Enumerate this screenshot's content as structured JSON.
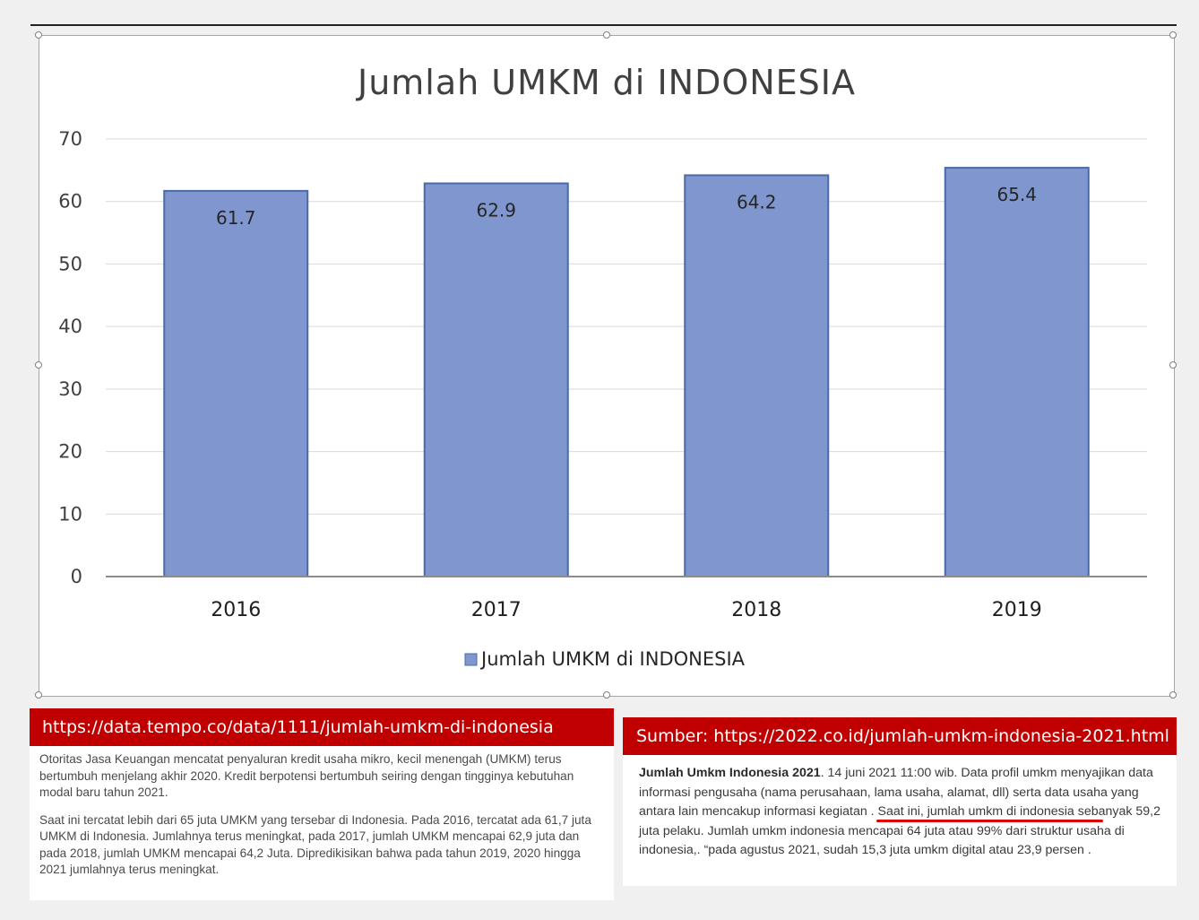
{
  "chart_data": {
    "type": "bar",
    "title": "Jumlah UMKM di INDONESIA",
    "categories": [
      "2016",
      "2017",
      "2018",
      "2019"
    ],
    "series": [
      {
        "name": "Jumlah UMKM di INDONESIA",
        "values": [
          61.7,
          62.9,
          64.2,
          65.4
        ]
      }
    ],
    "data_labels": [
      "61.7",
      "62.9",
      "64.2",
      "65.4"
    ],
    "ylim": [
      0,
      70
    ],
    "yticks": [
      0,
      10,
      20,
      30,
      40,
      50,
      60,
      70
    ],
    "grid": true,
    "legend_position": "bottom",
    "colors": {
      "bar": "#7f96cf",
      "bar_border": "#4a6aa8",
      "gridline": "#d9d9d9",
      "axis": "#8c8c8c"
    }
  },
  "left_panel": {
    "url": "https://data.tempo.co/data/1111/jumlah-umkm-di-indonesia",
    "paragraph1": "Otoritas Jasa Keuangan mencatat penyaluran kredit usaha mikro, kecil menengah (UMKM) terus bertumbuh menjelang akhir 2020. Kredit berpotensi bertumbuh seiring dengan tingginya kebutuhan modal baru tahun 2021.",
    "paragraph2": "Saat ini tercatat lebih dari 65 juta UMKM yang tersebar di Indonesia. Pada 2016, tercatat ada 61,7 juta UMKM di Indonesia. Jumlahnya terus meningkat, pada 2017, jumlah UMKM mencapai 62,9 juta dan pada 2018, jumlah UMKM mencapai 64,2 Juta. Dipredikisikan bahwa pada tahun 2019, 2020 hingga 2021 jumlahnya terus meningkat."
  },
  "right_panel": {
    "source": "Sumber: https://2022.co.id/jumlah-umkm-indonesia-2021.html",
    "bold_lead": "Jumlah Umkm Indonesia 2021",
    "body": ". 14 juni 2021 11:00 wib. Data profil umkm menyajikan data informasi pengusaha (nama perusahaan, lama usaha, alamat, dll) serta data usaha yang antara lain mencakup informasi kegiatan . Saat ini, jumlah umkm di indonesia sebanyak 59,2 juta pelaku. Jumlah umkm indonesia mencapai 64 juta atau 99% dari struktur usaha di indonesia,. “pada agustus 2021, sudah 15,3 juta umkm digital atau 23,9 persen ."
  },
  "colors": {
    "banner": "#c00000",
    "underline": "#e00000"
  }
}
